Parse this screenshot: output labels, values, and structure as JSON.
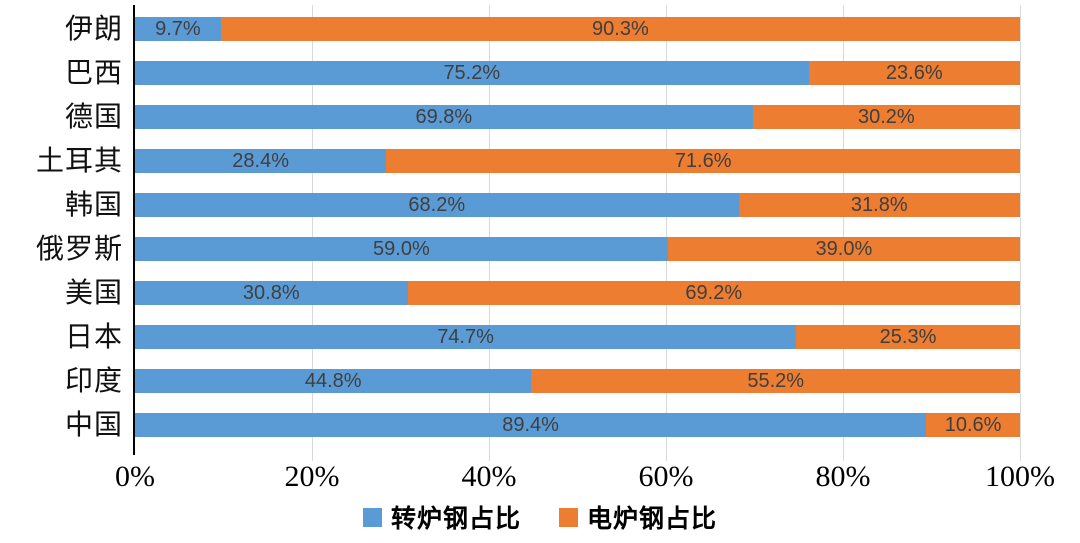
{
  "chart_data": {
    "type": "bar",
    "orientation": "horizontal",
    "stacked": true,
    "stacked_100_percent": true,
    "title": "",
    "categories": [
      "伊朗",
      "巴西",
      "德国",
      "土耳其",
      "韩国",
      "俄罗斯",
      "美国",
      "日本",
      "印度",
      "中国"
    ],
    "series": [
      {
        "name": "转炉钢占比",
        "color": "#5B9BD5",
        "values": [
          9.7,
          75.2,
          69.8,
          28.4,
          68.2,
          59.0,
          30.8,
          74.7,
          44.8,
          89.4
        ]
      },
      {
        "name": "电炉钢占比",
        "color": "#ED7D31",
        "values": [
          90.3,
          23.6,
          30.2,
          71.6,
          31.8,
          39.0,
          69.2,
          25.3,
          55.2,
          10.6
        ]
      }
    ],
    "x_axis": {
      "ticks": [
        "0%",
        "20%",
        "40%",
        "60%",
        "80%",
        "100%"
      ],
      "range": [
        0,
        100
      ],
      "grid": true
    },
    "legend": [
      {
        "label": "转炉钢占比",
        "color": "#5B9BD5"
      },
      {
        "label": "电炉钢占比",
        "color": "#ED7D31"
      }
    ],
    "legend_position": "bottom",
    "data_label_format": "one-decimal-percent"
  },
  "colors": {
    "axis_line": "#000000",
    "gridline": "#d9d9d9",
    "data_label": "#3f3f3f",
    "background": "#ffffff"
  }
}
